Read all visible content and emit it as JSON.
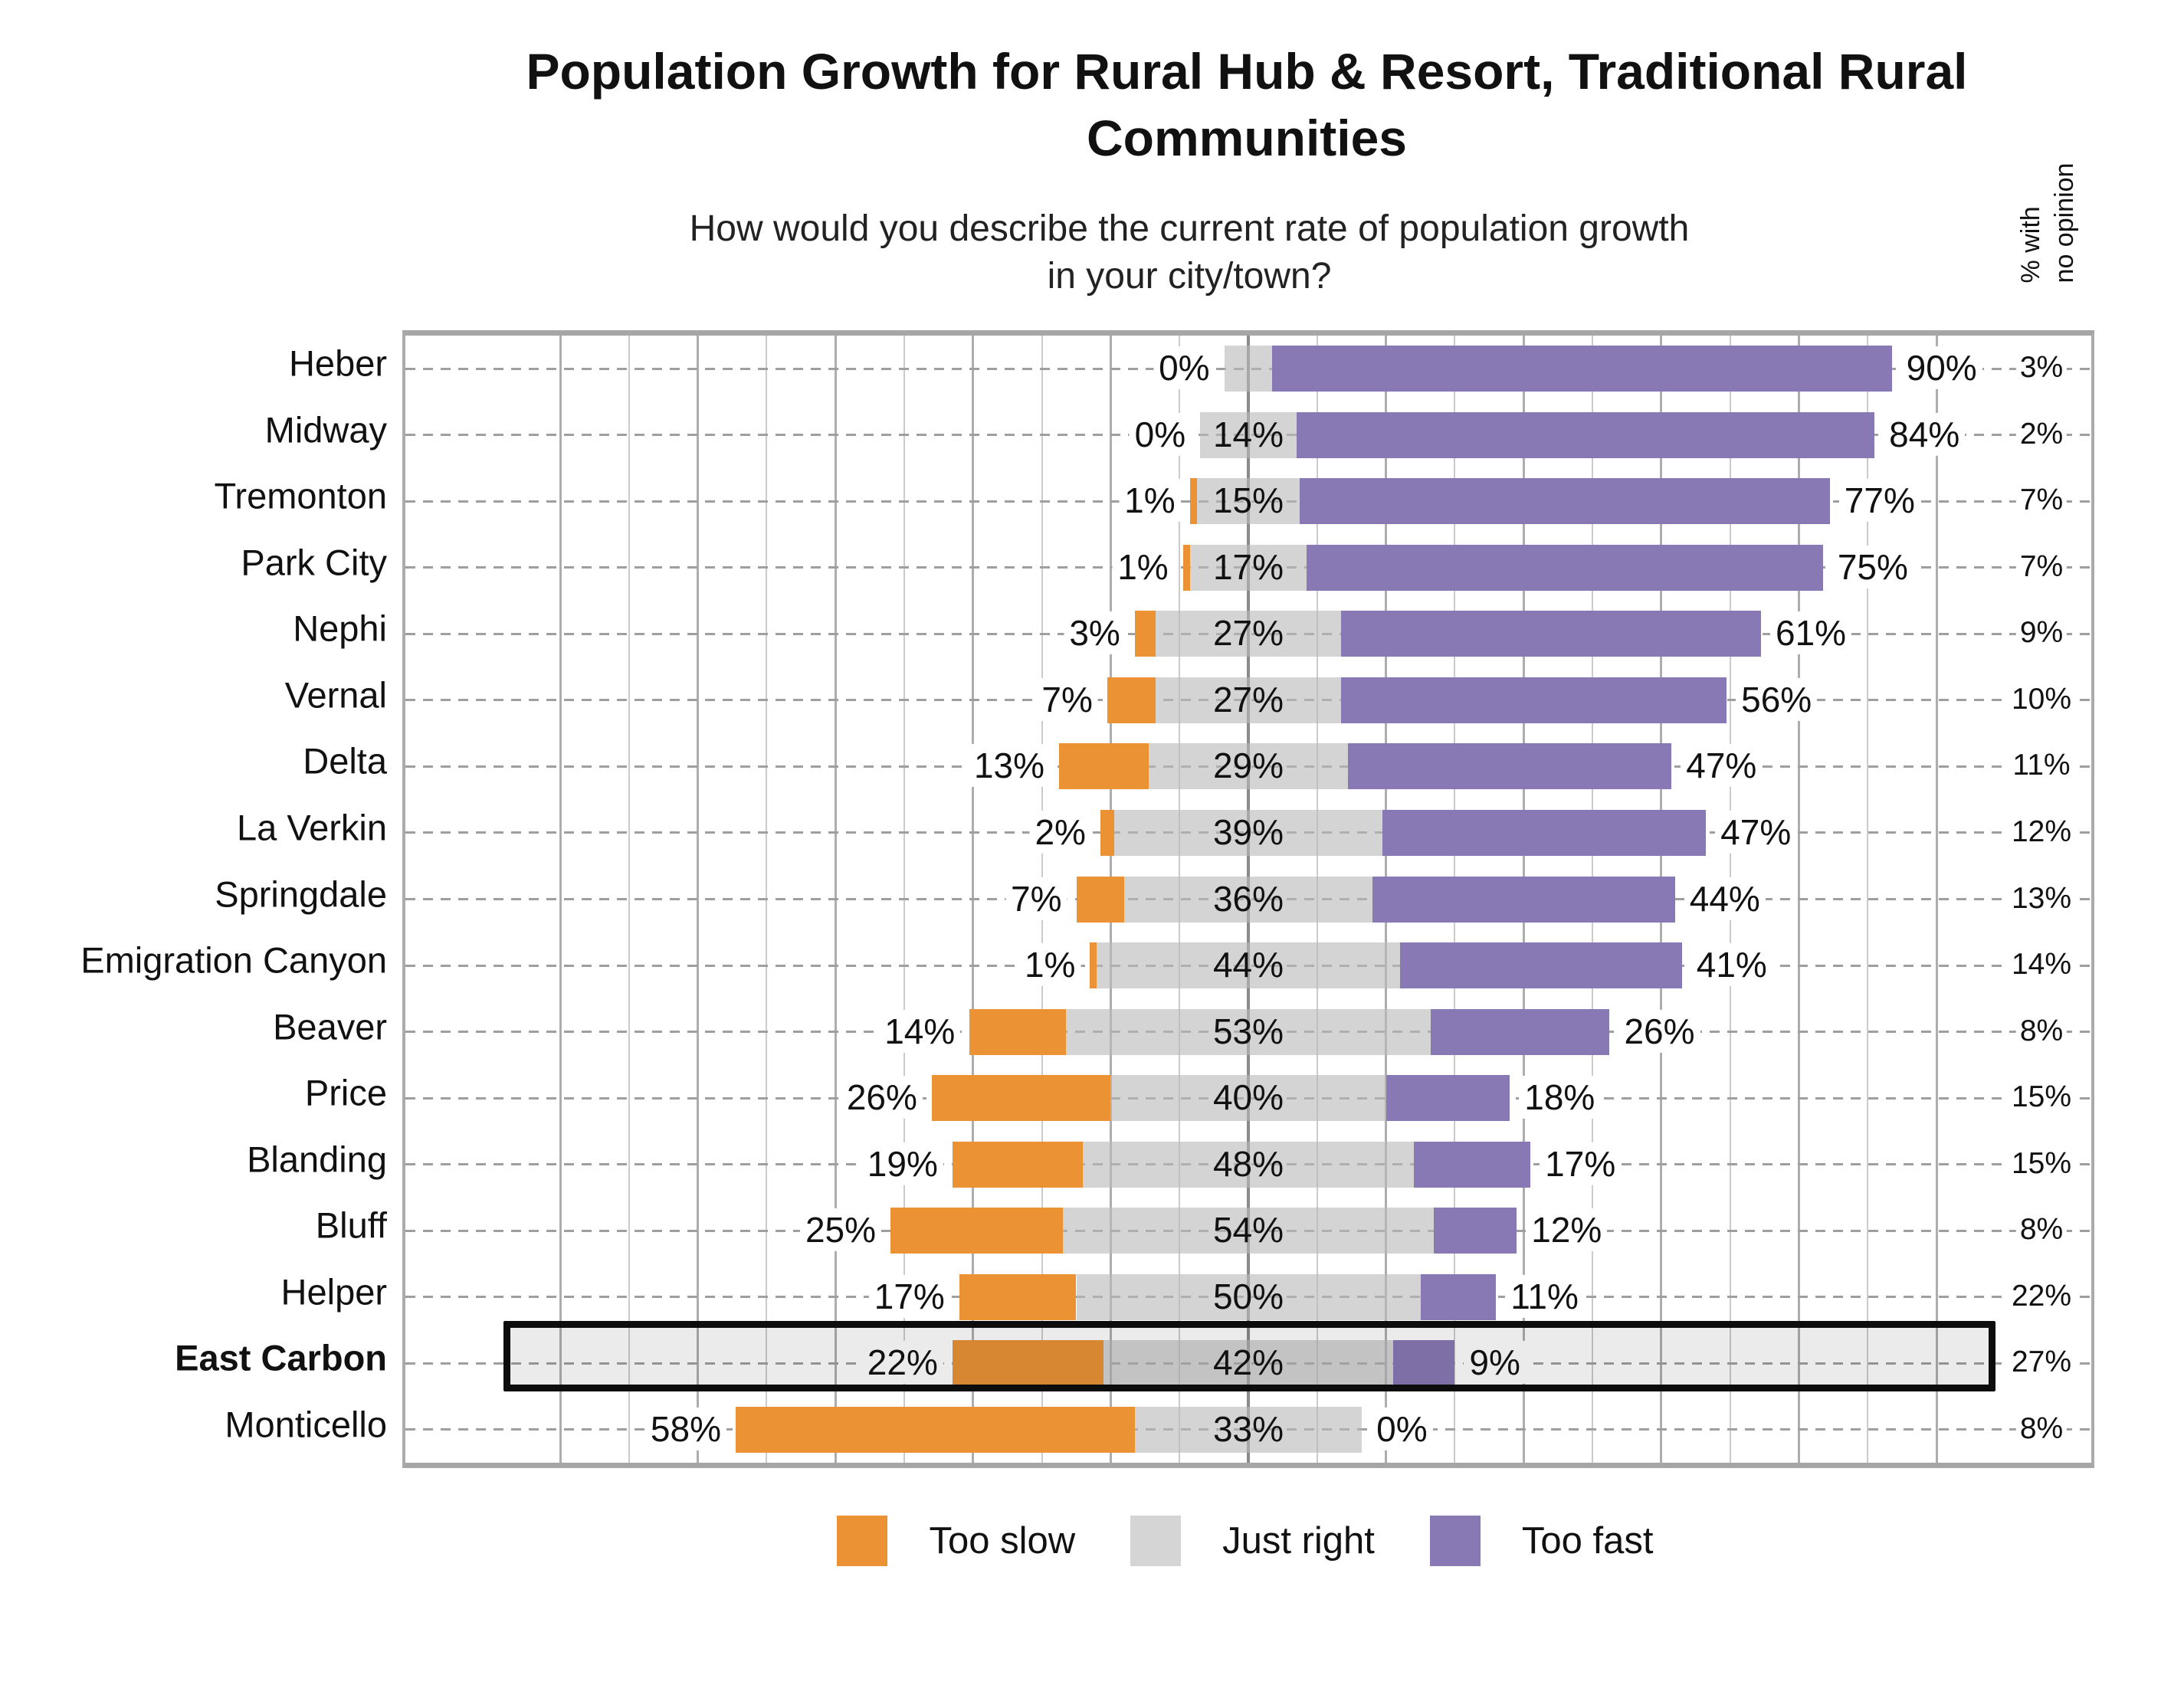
{
  "title": "Population Growth for Rural Hub & Resort, Traditional Rural\nCommunities",
  "subtitle": "How would you describe the current rate of population growth\nin your city/town?",
  "no_opinion_header": "% with\nno opinion",
  "colors": {
    "too_slow": "#EA9234",
    "just_right": "#D5D5D5",
    "just_right_bar_rgba": "rgba(185,185,185,0.62)",
    "too_fast": "#8878B4",
    "highlight_border": "#0d0d0d",
    "gridline_minor": "#cbcbcb",
    "gridline_major": "#adadad",
    "gridline_center": "#8a8a8a"
  },
  "legend": [
    {
      "label": "Too slow",
      "color_key": "too_slow"
    },
    {
      "label": "Just right",
      "color_key": "just_right"
    },
    {
      "label": "Too fast",
      "color_key": "too_fast"
    }
  ],
  "chart_data": {
    "type": "bar",
    "orientation": "horizontal-diverging-stacked",
    "series_names": [
      "Too slow",
      "Just right",
      "Too fast"
    ],
    "extra_column": "% with no opinion",
    "axis": {
      "center_pct": 0,
      "gridline_step_pct": 10,
      "gridline_range": [
        -100,
        100
      ],
      "grid": true
    },
    "legend_position": "bottom",
    "highlighted_category": "East Carbon",
    "rows": [
      {
        "city": "Heber",
        "too_slow": 0,
        "just_right": 7,
        "too_fast": 90,
        "no_opinion": 3,
        "labels": {
          "too_slow": "0%",
          "just_right": "",
          "too_fast": "90%",
          "no_opinion": "3%"
        },
        "highlight": false
      },
      {
        "city": "Midway",
        "too_slow": 0,
        "just_right": 14,
        "too_fast": 84,
        "no_opinion": 2,
        "labels": {
          "too_slow": "0%",
          "just_right": "14%",
          "too_fast": "84%",
          "no_opinion": "2%"
        },
        "highlight": false
      },
      {
        "city": "Tremonton",
        "too_slow": 1,
        "just_right": 15,
        "too_fast": 77,
        "no_opinion": 7,
        "labels": {
          "too_slow": "1%",
          "just_right": "15%",
          "too_fast": "77%",
          "no_opinion": "7%"
        },
        "highlight": false
      },
      {
        "city": "Park City",
        "too_slow": 1,
        "just_right": 17,
        "too_fast": 75,
        "no_opinion": 7,
        "labels": {
          "too_slow": "1%",
          "just_right": "17%",
          "too_fast": "75%",
          "no_opinion": "7%"
        },
        "highlight": false
      },
      {
        "city": "Nephi",
        "too_slow": 3,
        "just_right": 27,
        "too_fast": 61,
        "no_opinion": 9,
        "labels": {
          "too_slow": "3%",
          "just_right": "27%",
          "too_fast": "61%",
          "no_opinion": "9%"
        },
        "highlight": false
      },
      {
        "city": "Vernal",
        "too_slow": 7,
        "just_right": 27,
        "too_fast": 56,
        "no_opinion": 10,
        "labels": {
          "too_slow": "7%",
          "just_right": "27%",
          "too_fast": "56%",
          "no_opinion": "10%"
        },
        "highlight": false
      },
      {
        "city": "Delta",
        "too_slow": 13,
        "just_right": 29,
        "too_fast": 47,
        "no_opinion": 11,
        "labels": {
          "too_slow": "13%",
          "just_right": "29%",
          "too_fast": "47%",
          "no_opinion": "11%"
        },
        "highlight": false
      },
      {
        "city": "La Verkin",
        "too_slow": 2,
        "just_right": 39,
        "too_fast": 47,
        "no_opinion": 12,
        "labels": {
          "too_slow": "2%",
          "just_right": "39%",
          "too_fast": "47%",
          "no_opinion": "12%"
        },
        "highlight": false
      },
      {
        "city": "Springdale",
        "too_slow": 7,
        "just_right": 36,
        "too_fast": 44,
        "no_opinion": 13,
        "labels": {
          "too_slow": "7%",
          "just_right": "36%",
          "too_fast": "44%",
          "no_opinion": "13%"
        },
        "highlight": false
      },
      {
        "city": "Emigration Canyon",
        "too_slow": 1,
        "just_right": 44,
        "too_fast": 41,
        "no_opinion": 14,
        "labels": {
          "too_slow": "1%",
          "just_right": "44%",
          "too_fast": "41%",
          "no_opinion": "14%"
        },
        "highlight": false
      },
      {
        "city": "Beaver",
        "too_slow": 14,
        "just_right": 53,
        "too_fast": 26,
        "no_opinion": 8,
        "labels": {
          "too_slow": "14%",
          "just_right": "53%",
          "too_fast": "26%",
          "no_opinion": "8%"
        },
        "highlight": false
      },
      {
        "city": "Price",
        "too_slow": 26,
        "just_right": 40,
        "too_fast": 18,
        "no_opinion": 15,
        "labels": {
          "too_slow": "26%",
          "just_right": "40%",
          "too_fast": "18%",
          "no_opinion": "15%"
        },
        "highlight": false
      },
      {
        "city": "Blanding",
        "too_slow": 19,
        "just_right": 48,
        "too_fast": 17,
        "no_opinion": 15,
        "labels": {
          "too_slow": "19%",
          "just_right": "48%",
          "too_fast": "17%",
          "no_opinion": "15%"
        },
        "highlight": false
      },
      {
        "city": "Bluff",
        "too_slow": 25,
        "just_right": 54,
        "too_fast": 12,
        "no_opinion": 8,
        "labels": {
          "too_slow": "25%",
          "just_right": "54%",
          "too_fast": "12%",
          "no_opinion": "8%"
        },
        "highlight": false
      },
      {
        "city": "Helper",
        "too_slow": 17,
        "just_right": 50,
        "too_fast": 11,
        "no_opinion": 22,
        "labels": {
          "too_slow": "17%",
          "just_right": "50%",
          "too_fast": "11%",
          "no_opinion": "22%"
        },
        "highlight": false
      },
      {
        "city": "East Carbon",
        "too_slow": 22,
        "just_right": 42,
        "too_fast": 9,
        "no_opinion": 27,
        "labels": {
          "too_slow": "22%",
          "just_right": "42%",
          "too_fast": "9%",
          "no_opinion": "27%"
        },
        "highlight": true
      },
      {
        "city": "Monticello",
        "too_slow": 58,
        "just_right": 33,
        "too_fast": 0,
        "no_opinion": 8,
        "labels": {
          "too_slow": "58%",
          "just_right": "33%",
          "too_fast": "0%",
          "no_opinion": "8%"
        },
        "highlight": false
      }
    ]
  }
}
